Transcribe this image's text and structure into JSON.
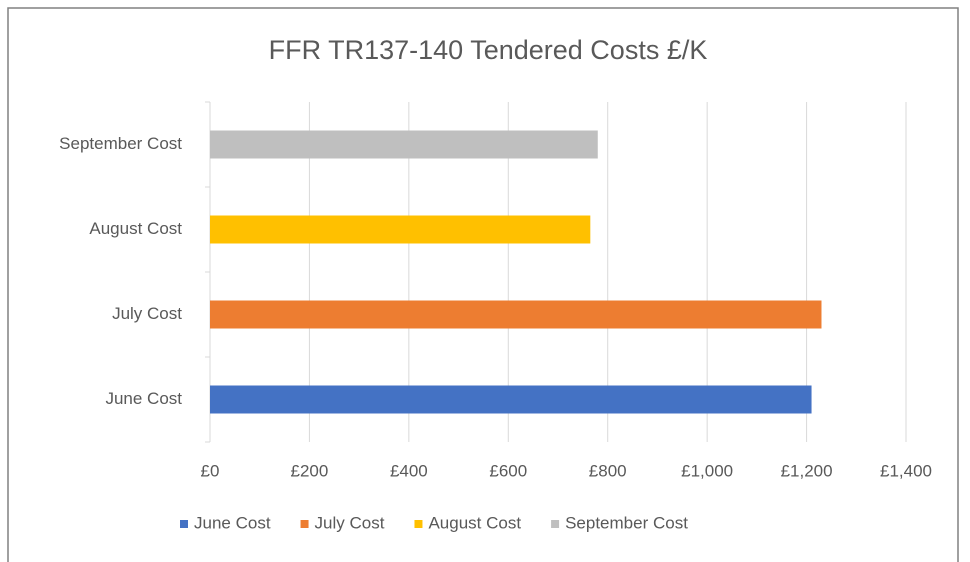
{
  "chart_data": {
    "type": "bar",
    "orientation": "horizontal",
    "title": "FFR TR137-140 Tendered Costs £/K",
    "categories": [
      "June Cost",
      "July Cost",
      "August Cost",
      "September Cost"
    ],
    "values": [
      1210,
      1230,
      765,
      780
    ],
    "colors": [
      "#4472c4",
      "#ed7d31",
      "#ffc000",
      "#bfbfbf"
    ],
    "xlim": [
      0,
      1400
    ],
    "xticks": [
      {
        "value": 0,
        "label": "£0"
      },
      {
        "value": 200,
        "label": "£200"
      },
      {
        "value": 400,
        "label": "£400"
      },
      {
        "value": 600,
        "label": "£600"
      },
      {
        "value": 800,
        "label": "£800"
      },
      {
        "value": 1000,
        "label": "£1,000"
      },
      {
        "value": 1200,
        "label": "£1,200"
      },
      {
        "value": 1400,
        "label": "£1,400"
      }
    ],
    "grid": true,
    "legend": "bottom"
  }
}
